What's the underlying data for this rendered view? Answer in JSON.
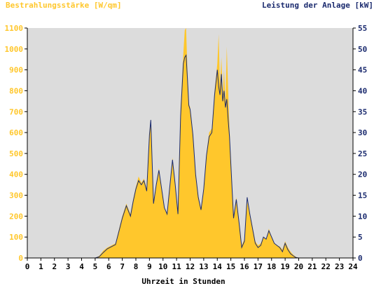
{
  "chart_data": {
    "type": "area",
    "left_axis_title": "Bestrahlungsstärke [W/qm]",
    "right_axis_title": "Leistung der Anlage [kW]",
    "xlabel": "Uhrzeit in Stunden",
    "xlim": [
      0,
      24
    ],
    "ylim_left": [
      0,
      1100
    ],
    "ylim_right": [
      0,
      55
    ],
    "x_ticks": [
      "0",
      "1",
      "2",
      "3",
      "4",
      "5",
      "6",
      "7",
      "8",
      "9",
      "10",
      "11",
      "12",
      "13",
      "14",
      "15",
      "16",
      "17",
      "18",
      "19",
      "20",
      "21",
      "22",
      "23",
      "24"
    ],
    "y_left_ticks": [
      "0",
      "100",
      "200",
      "300",
      "400",
      "500",
      "600",
      "700",
      "800",
      "900",
      "1000",
      "1100"
    ],
    "y_right_ticks": [
      "0",
      "5",
      "10",
      "15",
      "20",
      "25",
      "30",
      "35",
      "40",
      "45",
      "50",
      "55"
    ],
    "grid": false,
    "colors": {
      "background": "#dcdcdc",
      "irradiance_fill": "#ffc72c",
      "power_line": "#1a2a6e",
      "left_axis_text": "#ffc72c",
      "right_axis_text": "#1a2a6e",
      "axis": "#000000"
    },
    "series": [
      {
        "name": "Bestrahlungsstärke [W/qm]",
        "axis": "left",
        "style": "area",
        "x": [
          0,
          5,
          5.3,
          5.6,
          5.9,
          6.2,
          6.5,
          6.8,
          7,
          7.3,
          7.6,
          7.8,
          8,
          8.2,
          8.4,
          8.6,
          8.8,
          9,
          9.1,
          9.3,
          9.5,
          9.7,
          9.9,
          10.1,
          10.3,
          10.5,
          10.7,
          10.9,
          11.1,
          11.3,
          11.5,
          11.6,
          11.7,
          11.8,
          11.9,
          12,
          12.2,
          12.4,
          12.6,
          12.8,
          13,
          13.2,
          13.4,
          13.6,
          13.8,
          14,
          14.1,
          14.2,
          14.3,
          14.4,
          14.5,
          14.6,
          14.7,
          14.8,
          14.9,
          15,
          15.2,
          15.4,
          15.6,
          15.8,
          16,
          16.2,
          16.4,
          16.6,
          16.8,
          17,
          17.2,
          17.4,
          17.6,
          17.8,
          18,
          18.2,
          18.4,
          18.6,
          18.8,
          19,
          19.2,
          19.4,
          19.6,
          19.8,
          20,
          24
        ],
        "y": [
          0,
          0,
          10,
          35,
          50,
          60,
          70,
          150,
          200,
          260,
          210,
          280,
          340,
          390,
          360,
          380,
          330,
          590,
          640,
          260,
          350,
          430,
          330,
          240,
          210,
          340,
          480,
          350,
          210,
          720,
          980,
          1090,
          1100,
          900,
          740,
          720,
          600,
          400,
          300,
          230,
          340,
          500,
          600,
          620,
          800,
          930,
          1070,
          820,
          960,
          780,
          900,
          740,
          1010,
          800,
          620,
          470,
          200,
          290,
          180,
          60,
          90,
          270,
          210,
          150,
          80,
          60,
          70,
          100,
          90,
          140,
          100,
          70,
          60,
          55,
          40,
          80,
          50,
          30,
          15,
          5,
          0,
          0
        ]
      },
      {
        "name": "Leistung der Anlage [kW]",
        "axis": "right",
        "style": "line",
        "x": [
          0,
          5,
          5.3,
          5.6,
          5.9,
          6.2,
          6.5,
          6.8,
          7,
          7.3,
          7.6,
          7.8,
          8,
          8.2,
          8.4,
          8.6,
          8.8,
          9,
          9.1,
          9.3,
          9.5,
          9.7,
          9.9,
          10.1,
          10.3,
          10.5,
          10.7,
          10.9,
          11.1,
          11.3,
          11.5,
          11.6,
          11.7,
          11.8,
          11.9,
          12,
          12.2,
          12.4,
          12.6,
          12.8,
          13,
          13.2,
          13.4,
          13.6,
          13.8,
          14,
          14.1,
          14.2,
          14.3,
          14.4,
          14.5,
          14.6,
          14.7,
          14.8,
          14.9,
          15,
          15.2,
          15.4,
          15.6,
          15.8,
          16,
          16.2,
          16.4,
          16.6,
          16.8,
          17,
          17.2,
          17.4,
          17.6,
          17.8,
          18,
          18.2,
          18.4,
          18.6,
          18.8,
          19,
          19.2,
          19.4,
          19.6,
          19.8,
          20,
          24
        ],
        "y": [
          0,
          0,
          0.3,
          1.3,
          2.2,
          2.7,
          3.2,
          7,
          9.5,
          12.5,
          10,
          13.5,
          16.5,
          18.5,
          17.5,
          18.5,
          16,
          29.5,
          33,
          13,
          17.5,
          21,
          16.5,
          12,
          10.5,
          17,
          23.5,
          17.5,
          10.5,
          34,
          46.5,
          48,
          48.5,
          43,
          36.5,
          35.5,
          29.5,
          20,
          14.5,
          11.5,
          16.5,
          24.5,
          29,
          30,
          39,
          45,
          41,
          39,
          44,
          37.5,
          40,
          36,
          38,
          33,
          29,
          22.5,
          9.5,
          14,
          8.5,
          2.5,
          4,
          14.5,
          10.5,
          7,
          3.5,
          2.5,
          3,
          5,
          4.5,
          6.5,
          5,
          3.5,
          3,
          2.5,
          1.5,
          3.5,
          2,
          1,
          0.5,
          0.1,
          0,
          0
        ]
      }
    ]
  }
}
